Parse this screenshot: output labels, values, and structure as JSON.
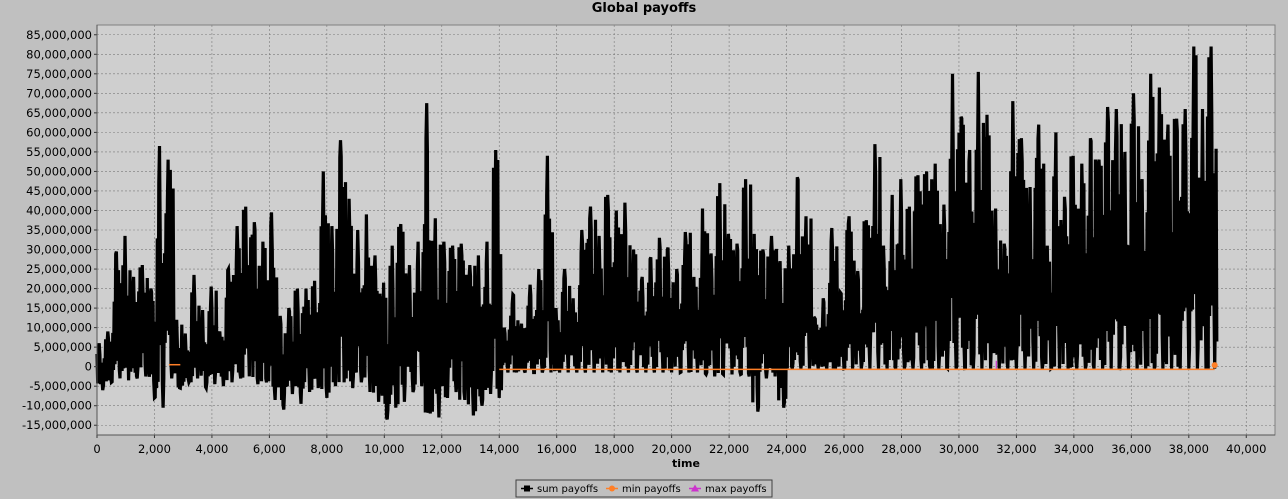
{
  "chart_data": {
    "type": "line",
    "title": "Global payoffs",
    "xlabel": "time",
    "ylabel": "",
    "xlim": [
      0,
      41000
    ],
    "ylim": [
      -17500000,
      87500000
    ],
    "x_ticks": [
      0,
      2000,
      4000,
      6000,
      8000,
      10000,
      12000,
      14000,
      16000,
      18000,
      20000,
      22000,
      24000,
      26000,
      28000,
      30000,
      32000,
      34000,
      36000,
      38000,
      40000
    ],
    "x_tick_labels": [
      "0",
      "2,000",
      "4,000",
      "6,000",
      "8,000",
      "10,000",
      "12,000",
      "14,000",
      "16,000",
      "18,000",
      "20,000",
      "22,000",
      "24,000",
      "26,000",
      "28,000",
      "30,000",
      "32,000",
      "34,000",
      "36,000",
      "38,000",
      "40,000"
    ],
    "y_ticks": [
      -15000000,
      -10000000,
      -5000000,
      0,
      5000000,
      10000000,
      15000000,
      20000000,
      25000000,
      30000000,
      35000000,
      40000000,
      45000000,
      50000000,
      55000000,
      60000000,
      65000000,
      70000000,
      75000000,
      80000000,
      85000000
    ],
    "y_tick_labels": [
      "-15,000,000",
      "-10,000,000",
      "-5,000,000",
      "0",
      "5,000,000",
      "10,000,000",
      "15,000,000",
      "20,000,000",
      "25,000,000",
      "30,000,000",
      "35,000,000",
      "40,000,000",
      "45,000,000",
      "50,000,000",
      "55,000,000",
      "60,000,000",
      "65,000,000",
      "70,000,000",
      "75,000,000",
      "80,000,000",
      "85,000,000"
    ],
    "grid": true,
    "legend_position": "bottom",
    "series": [
      {
        "name": "sum payoffs",
        "color": "#000000",
        "marker": "square",
        "x": [
          0,
          300,
          600,
          900,
          1200,
          1500,
          1800,
          2100,
          2400,
          2700,
          3000,
          3300,
          3600,
          3900,
          4200,
          4500,
          4800,
          5100,
          5400,
          5700,
          6000,
          6300,
          6600,
          6900,
          7200,
          7500,
          7800,
          8100,
          8400,
          8700,
          9000,
          9300,
          9600,
          9900,
          10200,
          10500,
          10800,
          11100,
          11400,
          11700,
          12000,
          12300,
          12600,
          12900,
          13200,
          13500,
          13800,
          14100,
          14400,
          14700,
          15000,
          15300,
          15600,
          15900,
          16200,
          16500,
          16800,
          17100,
          17400,
          17700,
          18000,
          18300,
          18600,
          18900,
          19200,
          19500,
          19800,
          20100,
          20400,
          20700,
          21000,
          21300,
          21600,
          21900,
          22200,
          22500,
          22800,
          23100,
          23400,
          23700,
          24000,
          24300,
          24600,
          24900,
          25200,
          25500,
          25800,
          26100,
          26400,
          26700,
          27000,
          27300,
          27600,
          27900,
          28200,
          28500,
          28800,
          29100,
          29400,
          29700,
          30000,
          30300,
          30600,
          30900,
          31200,
          31500,
          31800,
          32100,
          32400,
          32700,
          33000,
          33300,
          33600,
          33900,
          34200,
          34500,
          34800,
          35100,
          35400,
          35700,
          36000,
          36300,
          36600,
          36900,
          37200,
          37500,
          37800,
          38100,
          38400,
          38700
        ],
        "min": [
          -6000000,
          -4000000,
          -3000000,
          -3500000,
          -3000000,
          -2500000,
          -8000000,
          -10500000,
          -3000000,
          -5500000,
          -4000000,
          -3000000,
          -5500000,
          -4500000,
          -5000000,
          -4000000,
          -3000000,
          -2500000,
          -4500000,
          -4000000,
          -8500000,
          -11000000,
          -7000000,
          -9500000,
          -6500000,
          -5500000,
          -8000000,
          -5000000,
          -4000000,
          -5500000,
          -4000000,
          -6500000,
          -9000000,
          -13500000,
          -10500000,
          -9000000,
          -6500000,
          -5000000,
          -12000000,
          -13000000,
          -8000000,
          -6500000,
          -8500000,
          -12500000,
          -10000000,
          -7000000,
          -8000000,
          -1500000,
          -1500000,
          -1500000,
          -1500000,
          -1500000,
          -1500000,
          -1500000,
          -1500000,
          -1500000,
          -1500000,
          -1500000,
          -1500000,
          -1500000,
          -1500000,
          -1500000,
          -1500000,
          -1500000,
          -1500000,
          -1500000,
          -1500000,
          -1500000,
          -1500000,
          -1500000,
          -2000000,
          -2500000,
          -2000000,
          -2000000,
          -2000000,
          -2500000,
          -11500000,
          -3000000,
          -2500000,
          -10500000,
          -500000,
          -500000,
          -500000,
          -500000,
          -500000,
          -500000,
          -500000,
          -500000,
          -500000,
          -500000,
          -500000,
          -500000,
          -500000,
          -500000,
          -500000,
          -500000,
          -500000,
          -500000,
          -500000,
          -500000,
          -500000,
          -500000,
          -500000,
          -500000,
          -500000,
          -500000,
          -500000,
          -500000,
          -500000,
          -500000,
          -500000,
          -500000,
          -500000,
          -500000,
          -500000,
          -500000,
          -500000,
          -500000,
          -500000,
          -500000,
          -500000,
          -500000,
          -500000,
          -500000,
          -500000,
          -500000,
          -500000,
          -500000,
          -500000,
          -500000
        ],
        "max": [
          6000000,
          9000000,
          29500000,
          33500000,
          23000000,
          26000000,
          20000000,
          56500000,
          53000000,
          12000000,
          8500000,
          23500000,
          14500000,
          20500000,
          9000000,
          25000000,
          36000000,
          41000000,
          37000000,
          32000000,
          39500000,
          13000000,
          15000000,
          20000000,
          20000000,
          22000000,
          50000000,
          36000000,
          58000000,
          43000000,
          35000000,
          39000000,
          28500000,
          21500000,
          31000000,
          36500000,
          26000000,
          32000000,
          67500000,
          38000000,
          32000000,
          31000000,
          31500000,
          26000000,
          28500000,
          32000000,
          55500000,
          10000000,
          18500000,
          11000000,
          21000000,
          25000000,
          54000000,
          15000000,
          25000000,
          17500000,
          35000000,
          41000000,
          33500000,
          44000000,
          40000000,
          42000000,
          30000000,
          23000000,
          28000000,
          33000000,
          30500000,
          25000000,
          34500000,
          23000000,
          40500000,
          29000000,
          47000000,
          34000000,
          31500000,
          48000000,
          34000000,
          30000000,
          33500000,
          27000000,
          31000000,
          48500000,
          38500000,
          12500000,
          17500000,
          35500000,
          19000000,
          38500000,
          24500000,
          37500000,
          57000000,
          31000000,
          44000000,
          48000000,
          41000000,
          49000000,
          50000000,
          52000000,
          41500000,
          75000000,
          64000000,
          55500000,
          75500000,
          64500000,
          40500000,
          31500000,
          68000000,
          58500000,
          46000000,
          62000000,
          31000000,
          60000000,
          43500000,
          54000000,
          52000000,
          58500000,
          53000000,
          66500000,
          66000000,
          55000000,
          70000000,
          48000000,
          75000000,
          71500000,
          62000000,
          63500000,
          66000000,
          82000000,
          66000000,
          82000000
        ]
      },
      {
        "name": "min payoffs",
        "color": "#ff7f27",
        "marker": "circle"
      },
      {
        "name": "max payoffs",
        "color": "#cc33cc",
        "marker": "triangle"
      }
    ]
  }
}
